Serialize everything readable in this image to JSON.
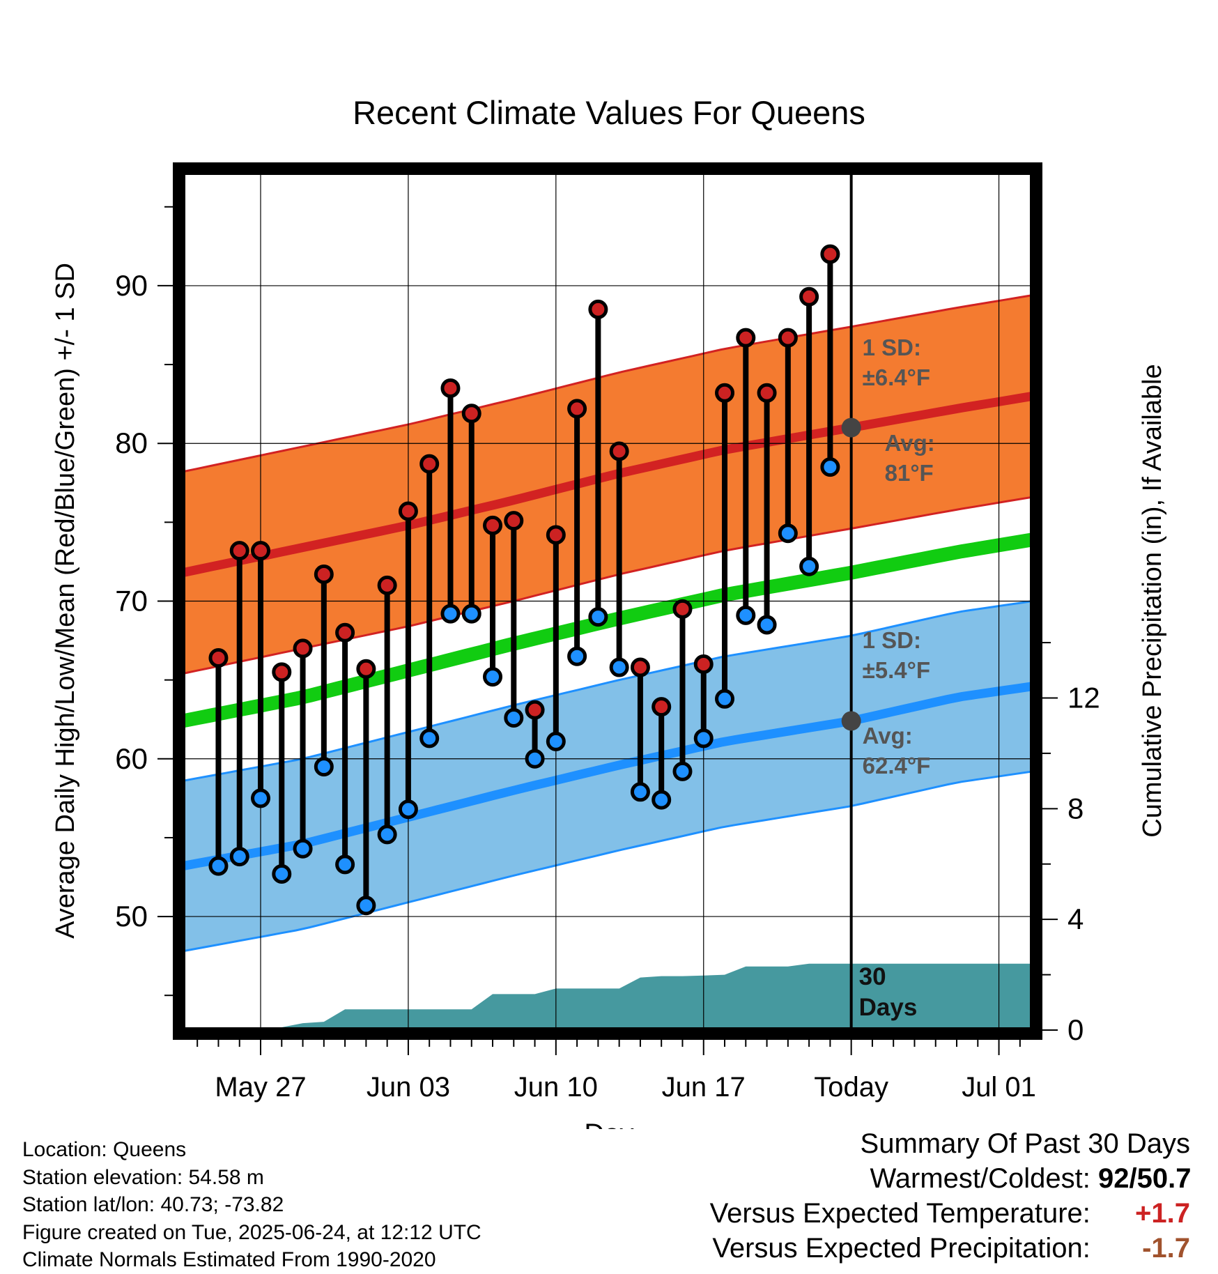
{
  "chart_data": {
    "type": "line",
    "title": "Recent Climate Values For Queens",
    "xlabel": "Day",
    "ylabel": "Average Daily High/Low/Mean (Red/Blue/Green) +/- 1 SD",
    "y2label": "Cumulative Precipitation (in), If Available",
    "ylim": [
      42.8,
      97.2
    ],
    "y2lim": [
      0,
      31
    ],
    "y_ticks": [
      "50",
      "60",
      "70",
      "80",
      "90"
    ],
    "y_tick_values": [
      50,
      60,
      70,
      80,
      90
    ],
    "y2_ticks": [
      "0",
      "4",
      "8",
      "12"
    ],
    "y2_tick_values": [
      0,
      4,
      8,
      12
    ],
    "x_ticks": [
      {
        "label": "May 27",
        "day": 3
      },
      {
        "label": "Jun 03",
        "day": 10
      },
      {
        "label": "Jun 10",
        "day": 17
      },
      {
        "label": "Jun 17",
        "day": 24
      },
      {
        "label": "Today",
        "day": 31
      },
      {
        "label": "Jul 01",
        "day": 38
      }
    ],
    "x_range_days": [
      -0.7,
      39.6
    ],
    "today_day": 31,
    "grid": true,
    "normals": {
      "high_avg": [
        [
          -0.7,
          71.8
        ],
        [
          5,
          73.4
        ],
        [
          10,
          74.8
        ],
        [
          15,
          76.4
        ],
        [
          20,
          78.1
        ],
        [
          25,
          79.6
        ],
        [
          31,
          81
        ],
        [
          36,
          82.2
        ],
        [
          39.6,
          83
        ]
      ],
      "high_sd": 6.4,
      "mean": [
        [
          -0.7,
          62.4
        ],
        [
          5,
          63.9
        ],
        [
          10,
          65.6
        ],
        [
          15,
          67.3
        ],
        [
          20,
          68.9
        ],
        [
          25,
          70.4
        ],
        [
          31,
          71.8
        ],
        [
          36,
          73.1
        ],
        [
          39.6,
          73.9
        ]
      ],
      "low_avg": [
        [
          -0.7,
          53.2
        ],
        [
          5,
          54.6
        ],
        [
          10,
          56.3
        ],
        [
          15,
          58
        ],
        [
          20,
          59.6
        ],
        [
          25,
          61.1
        ],
        [
          31,
          62.4
        ],
        [
          36,
          63.9
        ],
        [
          39.6,
          64.6
        ]
      ],
      "low_sd": 5.4
    },
    "series": [
      {
        "name": "High",
        "color": "#cc2222",
        "values": [
          66.4,
          73.2,
          73.2,
          65.5,
          67,
          71.7,
          68,
          65.7,
          71,
          75.7,
          78.7,
          83.5,
          81.9,
          74.8,
          75.1,
          63.1,
          74.2,
          82.2,
          88.5,
          79.5,
          65.8,
          63.3,
          69.5,
          66,
          83.2,
          86.7,
          83.2,
          86.7,
          89.3,
          92
        ]
      },
      {
        "name": "Low",
        "color": "#1e90ff",
        "values": [
          53.2,
          53.8,
          57.5,
          52.7,
          54.3,
          59.5,
          53.3,
          50.7,
          55.2,
          56.8,
          61.3,
          69.2,
          69.2,
          65.2,
          62.6,
          60,
          61.1,
          66.5,
          69,
          65.8,
          57.9,
          57.4,
          59.2,
          61.3,
          63.8,
          69.1,
          68.5,
          74.3,
          72.2,
          78.5
        ]
      }
    ],
    "days": [
      1,
      2,
      3,
      4,
      5,
      6,
      7,
      8,
      9,
      10,
      11,
      12,
      13,
      14,
      15,
      16,
      17,
      18,
      19,
      20,
      21,
      22,
      23,
      24,
      25,
      26,
      27,
      28,
      29,
      30
    ],
    "precip_cumulative": [
      [
        2,
        0
      ],
      [
        3,
        0
      ],
      [
        4,
        0.1
      ],
      [
        5,
        0.25
      ],
      [
        6,
        0.3
      ],
      [
        7,
        0.75
      ],
      [
        8,
        0.75
      ],
      [
        9,
        0.75
      ],
      [
        10,
        0.75
      ],
      [
        11,
        0.75
      ],
      [
        12,
        0.75
      ],
      [
        13,
        0.75
      ],
      [
        14,
        1.3
      ],
      [
        15,
        1.3
      ],
      [
        16,
        1.3
      ],
      [
        17,
        1.5
      ],
      [
        18,
        1.5
      ],
      [
        19,
        1.5
      ],
      [
        20,
        1.5
      ],
      [
        21,
        1.9
      ],
      [
        22,
        1.95
      ],
      [
        23,
        1.95
      ],
      [
        24,
        1.97
      ],
      [
        25,
        2
      ],
      [
        26,
        2.3
      ],
      [
        27,
        2.3
      ],
      [
        28,
        2.3
      ],
      [
        29,
        2.4
      ],
      [
        30,
        2.4
      ],
      [
        31,
        2.4
      ],
      [
        39.6,
        2.4
      ]
    ],
    "annotations": {
      "high_sd_line1": "1 SD:",
      "high_sd_line2": "±6.4°F",
      "high_avg_line1": "Avg:",
      "high_avg_line2": "81°F",
      "low_sd_line1": "1 SD:",
      "low_sd_line2": "±5.4°F",
      "low_avg_line1": "Avg:",
      "low_avg_line2": "62.4°F",
      "days_line1": "30",
      "days_line2": "Days",
      "high_avg_value": 81,
      "low_avg_value": 62.4
    },
    "colors": {
      "high_band": "#f47b30",
      "high_line": "#d22222",
      "low_band": "#82c0e8",
      "low_line": "#1e90ff",
      "mean_line": "#11cc11",
      "precip": "#46999f",
      "high_dot": "#cc2222",
      "low_dot": "#1e90ff",
      "annotation_text": "#555555"
    }
  },
  "footer": {
    "location": "Location: Queens",
    "elevation": "Station elevation: 54.58 m",
    "latlon": "Station lat/lon: 40.73; -73.82",
    "created": "Figure created on Tue, 2025-06-24, at 12:12 UTC",
    "normals": "Climate Normals Estimated From 1990-2020"
  },
  "summary": {
    "heading": "Summary Of Past 30 Days",
    "warm_cold_label": "Warmest/Coldest:",
    "warm_cold_value": "92/50.7",
    "temp_label": "Versus Expected Temperature:",
    "temp_value": "+1.7",
    "temp_color": "#cc2222",
    "precip_label": "Versus Expected Precipitation:",
    "precip_value": "-1.7",
    "precip_color": "#a0522d"
  }
}
